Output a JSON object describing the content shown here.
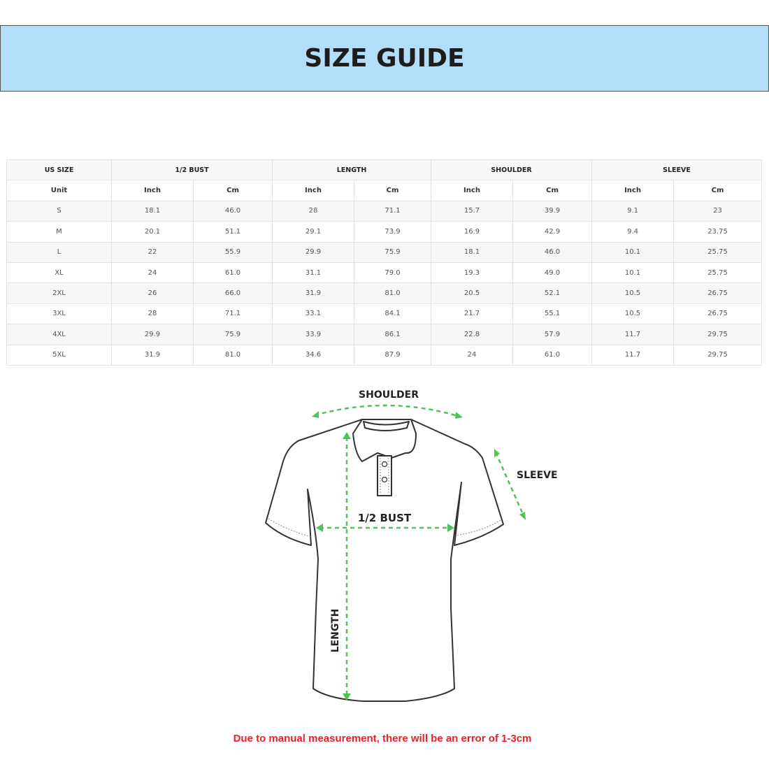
{
  "title": "SIZE GUIDE",
  "table": {
    "group_headers": [
      "US SIZE",
      "1/2 BUST",
      "LENGTH",
      "SHOULDER",
      "SLEEVE"
    ],
    "unit_row": [
      "Unit",
      "Inch",
      "Cm",
      "Inch",
      "Cm",
      "Inch",
      "Cm",
      "Inch",
      "Cm"
    ],
    "rows": [
      [
        "S",
        "18.1",
        "46.0",
        "28",
        "71.1",
        "15.7",
        "39.9",
        "9.1",
        "23"
      ],
      [
        "M",
        "20.1",
        "51.1",
        "29.1",
        "73.9",
        "16.9",
        "42.9",
        "9.4",
        "23.75"
      ],
      [
        "L",
        "22",
        "55.9",
        "29.9",
        "75.9",
        "18.1",
        "46.0",
        "10.1",
        "25.75"
      ],
      [
        "XL",
        "24",
        "61.0",
        "31.1",
        "79.0",
        "19.3",
        "49.0",
        "10.1",
        "25.75"
      ],
      [
        "2XL",
        "26",
        "66.0",
        "31.9",
        "81.0",
        "20.5",
        "52.1",
        "10.5",
        "26.75"
      ],
      [
        "3XL",
        "28",
        "71.1",
        "33.1",
        "84.1",
        "21.7",
        "55.1",
        "10.5",
        "26.75"
      ],
      [
        "4XL",
        "29.9",
        "75.9",
        "33.9",
        "86.1",
        "22.8",
        "57.9",
        "11.7",
        "29.75"
      ],
      [
        "5XL",
        "31.9",
        "81.0",
        "34.6",
        "87.9",
        "24",
        "61.0",
        "11.7",
        "29.75"
      ]
    ]
  },
  "diagram": {
    "labels": {
      "shoulder": "SHOULDER",
      "sleeve": "SLEEVE",
      "bust": "1/2 BUST",
      "length": "LENGTH"
    },
    "arrow_color": "#4fc35a"
  },
  "note": "Due to manual measurement, there will be an error of 1-3cm",
  "colors": {
    "banner": "#b3def9",
    "note": "#e8202a"
  }
}
